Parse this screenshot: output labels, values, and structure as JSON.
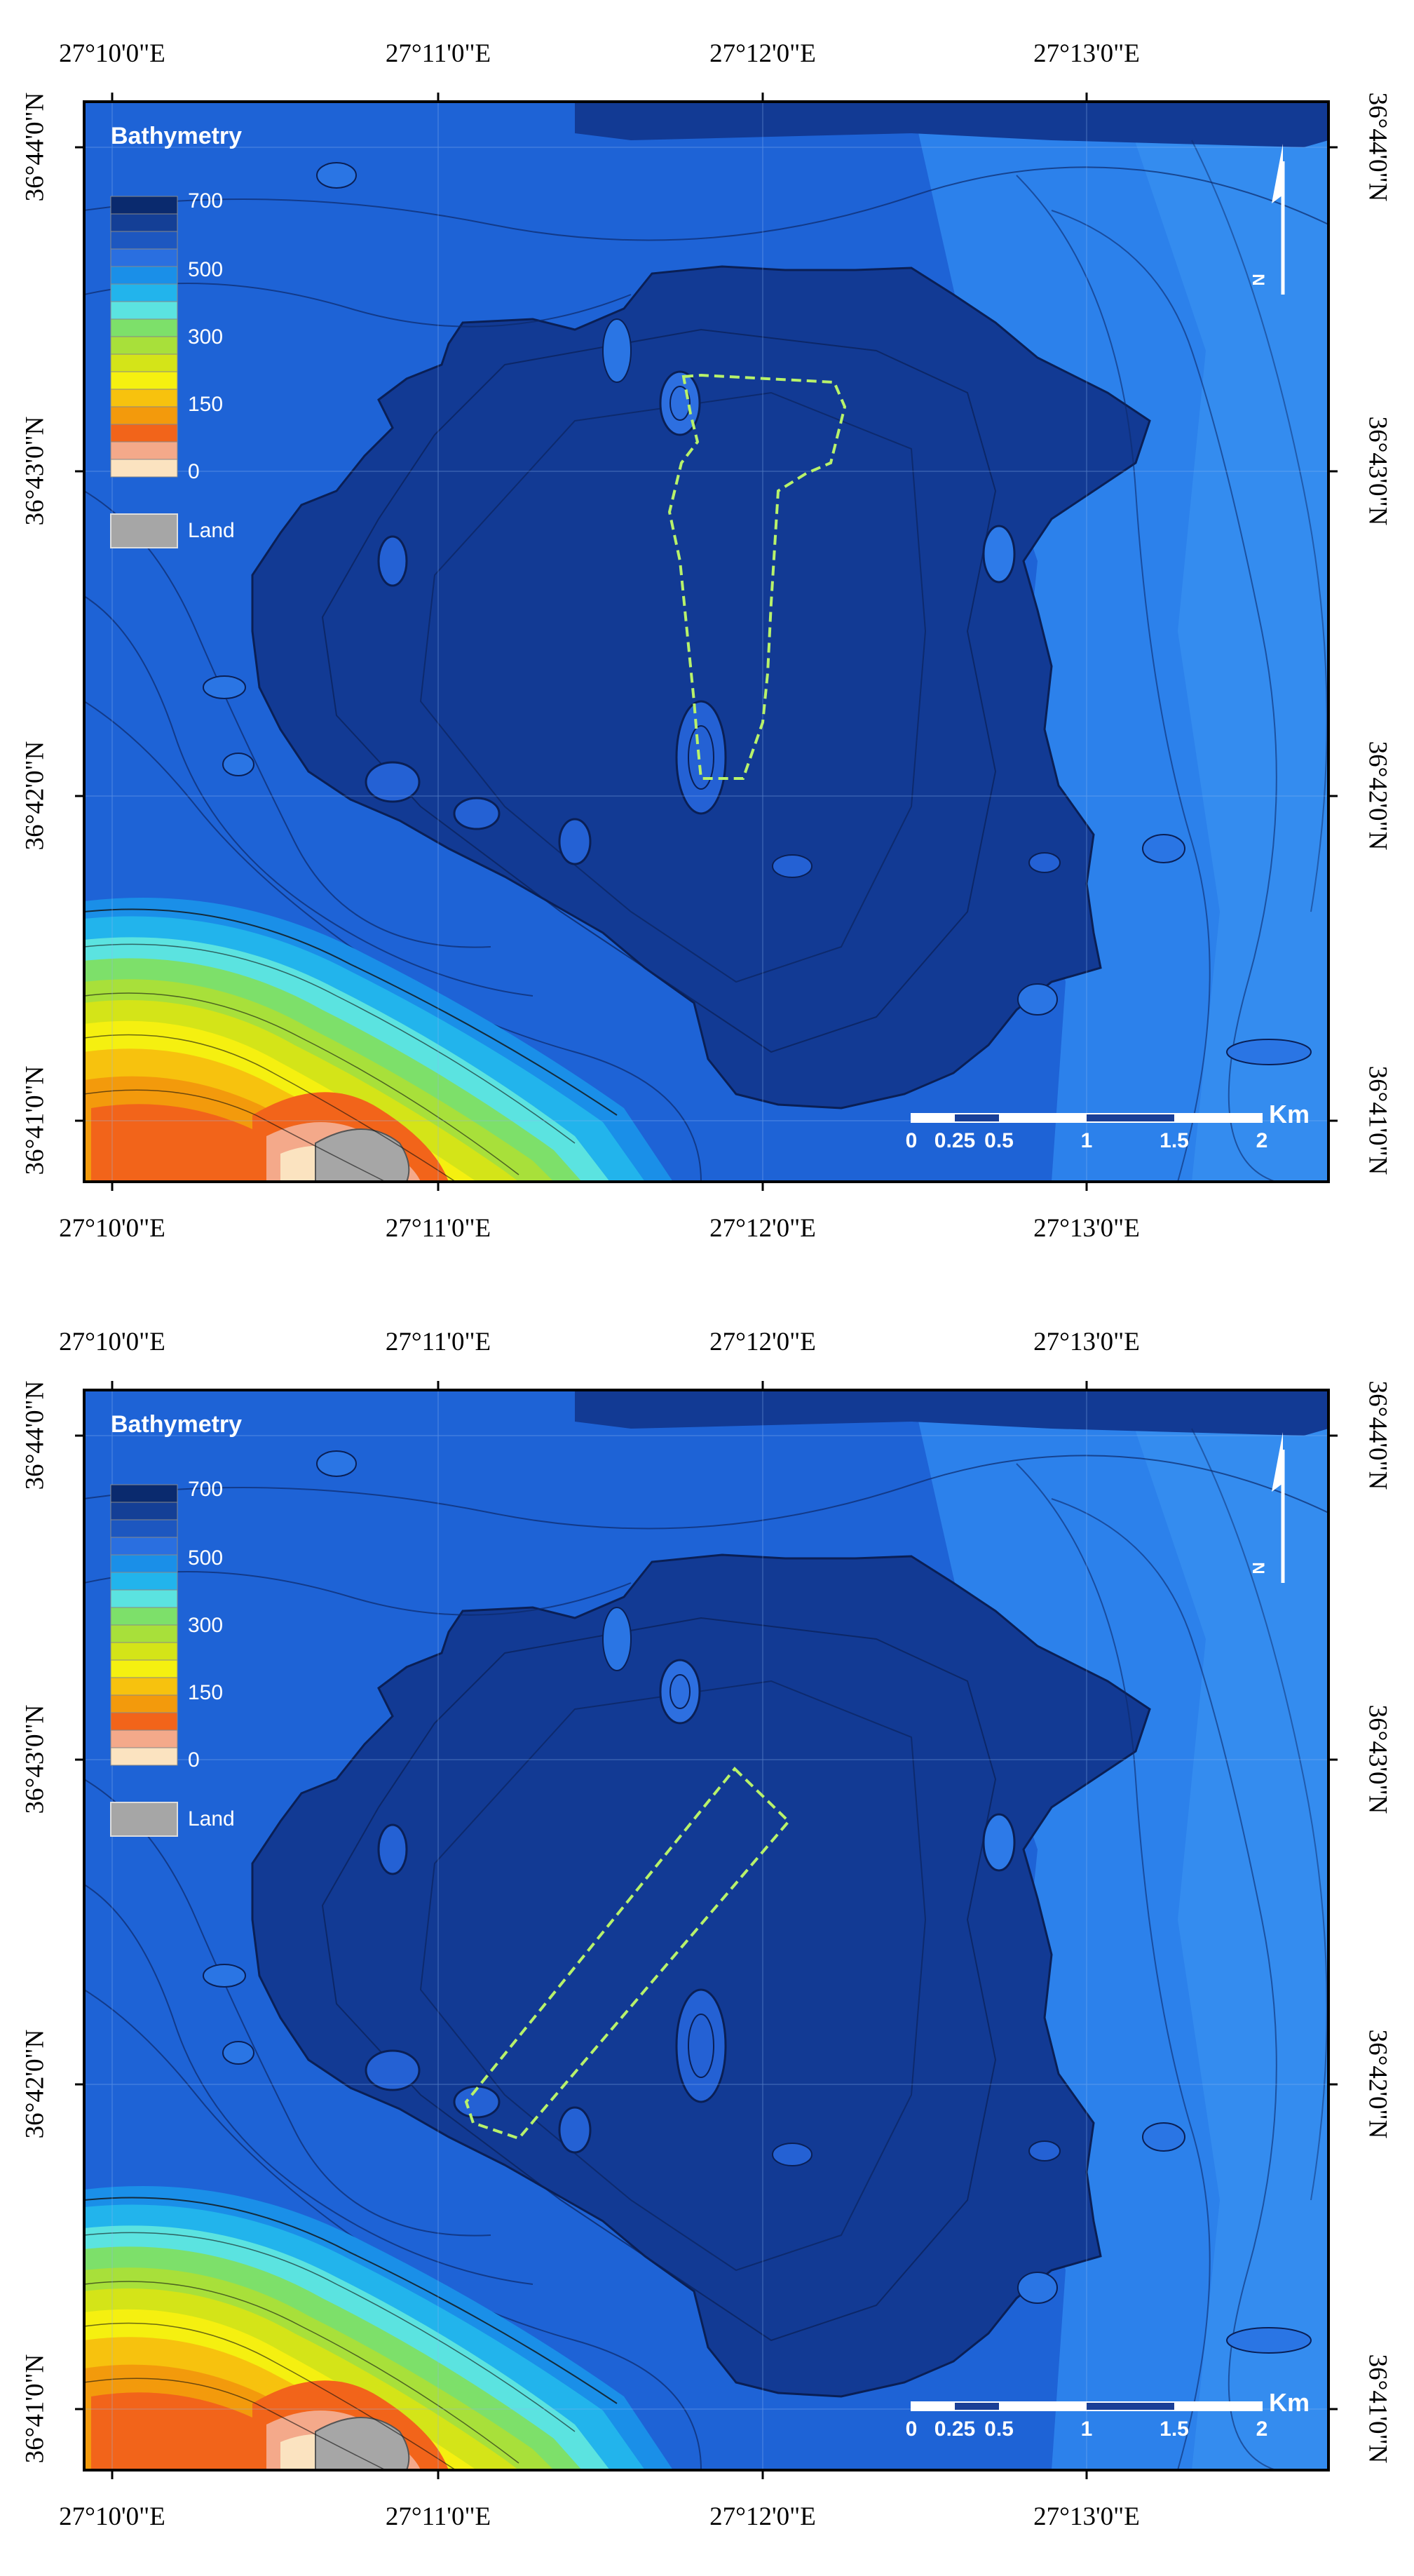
{
  "legend": {
    "title": "Bathymetry",
    "labels": [
      "700",
      "500",
      "300",
      "150",
      "0"
    ],
    "land_label": "Land",
    "swatches": [
      "#0a2a6e",
      "#143f96",
      "#1d57c0",
      "#2a6fe0",
      "#1a8fe8",
      "#22b4ec",
      "#5be3e0",
      "#7de06a",
      "#a8e03a",
      "#d4e418",
      "#f5f010",
      "#f7c20e",
      "#f39a0c",
      "#f2641a",
      "#f4a98a",
      "#fbe3c0"
    ],
    "land_color": "#a6a6a6"
  },
  "axes": {
    "lon_labels": [
      "27°10'0\"E",
      "27°11'0\"E",
      "27°12'0\"E",
      "27°13'0\"E"
    ],
    "lat_labels": [
      "36°44'0\"N",
      "36°43'0\"N",
      "36°42'0\"N",
      "36°41'0\"N"
    ]
  },
  "scale_bar": {
    "labels": [
      "0",
      "0.25",
      "0.5",
      "1",
      "1.5",
      "2"
    ],
    "unit": "Km"
  },
  "north_arrow": {
    "label": "N"
  },
  "colors": {
    "deep_basin": "#123a94",
    "sea_base": "#1e63d6",
    "shelf": "#2c86f0",
    "survey_outline": "#b8f26a"
  }
}
